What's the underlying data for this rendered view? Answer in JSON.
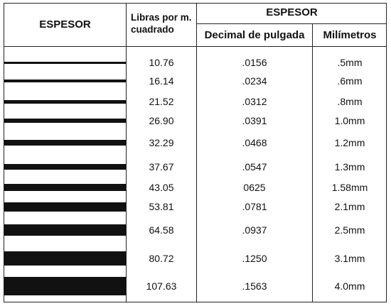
{
  "header": {
    "col_thickness": "ESPESOR",
    "col_pounds_line1": "Libras por m.",
    "col_pounds_line2": "cuadrado",
    "group_thickness": "ESPESOR",
    "col_decimal": "Decimal de pulgada",
    "col_mm": "Milímetros"
  },
  "rows": [
    {
      "pounds": "10.76",
      "decimal": ".0156",
      "mm": ".5mm",
      "thickness_mm": 0.5
    },
    {
      "pounds": "16.14",
      "decimal": ".0234",
      "mm": ".6mm",
      "thickness_mm": 0.6
    },
    {
      "pounds": "21.52",
      "decimal": ".0312",
      "mm": ".8mm",
      "thickness_mm": 0.8
    },
    {
      "pounds": "26.90",
      "decimal": ".0391",
      "mm": "1.0mm",
      "thickness_mm": 1.0
    },
    {
      "pounds": "32.29",
      "decimal": ".0468",
      "mm": "1.2mm",
      "thickness_mm": 1.2
    },
    {
      "pounds": "37.67",
      "decimal": ".0547",
      "mm": "1.3mm",
      "thickness_mm": 1.3
    },
    {
      "pounds": "43.05",
      "decimal": "0625",
      "mm": "1.58mm",
      "thickness_mm": 1.58
    },
    {
      "pounds": "53.81",
      "decimal": ".0781",
      "mm": "2.1mm",
      "thickness_mm": 2.1
    },
    {
      "pounds": "64.58",
      "decimal": ".0937",
      "mm": "2.5mm",
      "thickness_mm": 2.5
    },
    {
      "pounds": "80.72",
      "decimal": ".1250",
      "mm": "3.1mm",
      "thickness_mm": 3.1
    },
    {
      "pounds": "107.63",
      "decimal": ".1563",
      "mm": "4.0mm",
      "thickness_mm": 4.0
    }
  ]
}
